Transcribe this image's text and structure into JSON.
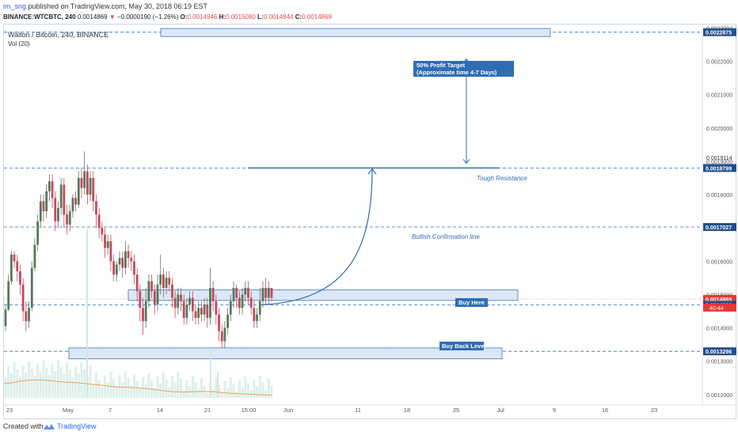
{
  "header": {
    "username": "im_sng",
    "published_text": "published on TradingView.com, May 30, 2018 06:19 EST",
    "symbol_line": "BINANCE:WTCBTC, 240",
    "last_price": "0.0014869",
    "change_arrow": "▼",
    "change": "−0.0000190 (−1.26%)",
    "o_label": "O:",
    "o_value": "0.0014946",
    "h_label": "H:",
    "h_value": "0.0015080",
    "l_label": "L:",
    "l_value": "0.0014844",
    "c_label": "C:",
    "c_value": "0.0014869"
  },
  "chart_label": "Walton / Bitcoin, 240, BINANCE",
  "volume_label": "Vol (20)",
  "footer": {
    "created_with": "Created with",
    "brand": "TradingView"
  },
  "colors": {
    "up": "#26a69a",
    "down": "#ef5350",
    "candle_up": "#55795c",
    "candle_down": "#c44a5a",
    "line": "#2f6db3",
    "dash": "#2f6db3",
    "box_fill": "#dbe7f7",
    "price_tag": "#244f8c",
    "current_tag": "#e53935"
  },
  "chart_data": {
    "type": "candlestick",
    "ylim": [
      0.00119,
      0.00232
    ],
    "x_ticks": [
      "23",
      "May",
      "7",
      "14",
      "21",
      "15:00",
      "Jun",
      "11",
      "18",
      "25",
      "Jul",
      "9",
      "16",
      "23"
    ],
    "y_ticks": [
      "0.0012000",
      "0.0013000",
      "0.0014000",
      "0.0015000",
      "0.0016000",
      "0.0017000",
      "0.0018000",
      "0.0019000",
      "0.0020000",
      "0.0021000",
      "0.0022000",
      "0.0023000"
    ],
    "price_tags": [
      "0.0022875",
      "0.0019114",
      "0.0018799",
      "0.0017027",
      "0.0014869",
      "0.0014692",
      "0.0013296"
    ],
    "countdown": "40:44",
    "levels": [
      0.0022875,
      0.0018799,
      0.0017027,
      0.0014692,
      0.0013296
    ],
    "current_price": 0.0014869,
    "annotations": {
      "target": "50% Profit Target\n(Approximate time 4-7 Days)",
      "resistance": "Tough Resistance",
      "confirmation": "Bullish Confirmation line",
      "buy": "Buy Here",
      "buyback": "Buy Back Level"
    },
    "candles": [
      [
        0.001405,
        0.001455,
        0.00139,
        0.00147
      ],
      [
        0.001455,
        0.00154,
        0.00145,
        0.00156
      ],
      [
        0.00154,
        0.00162,
        0.00153,
        0.00163
      ],
      [
        0.00162,
        0.0016,
        0.00158,
        0.00163
      ],
      [
        0.0016,
        0.00157,
        0.00154,
        0.00162
      ],
      [
        0.00157,
        0.00153,
        0.0015,
        0.00159
      ],
      [
        0.00153,
        0.00145,
        0.00142,
        0.00155
      ],
      [
        0.00145,
        0.00142,
        0.00139,
        0.00148
      ],
      [
        0.00142,
        0.00146,
        0.0014,
        0.00148
      ],
      [
        0.00146,
        0.00158,
        0.00145,
        0.0016
      ],
      [
        0.00158,
        0.00165,
        0.00157,
        0.00167
      ],
      [
        0.00165,
        0.00172,
        0.00163,
        0.00174
      ],
      [
        0.00172,
        0.00178,
        0.0017,
        0.0018
      ],
      [
        0.00178,
        0.00175,
        0.00172,
        0.0018
      ],
      [
        0.00175,
        0.00181,
        0.00173,
        0.00183
      ],
      [
        0.00181,
        0.00184,
        0.00178,
        0.00186
      ],
      [
        0.00184,
        0.00179,
        0.00176,
        0.00186
      ],
      [
        0.00179,
        0.00172,
        0.00169,
        0.00181
      ],
      [
        0.00172,
        0.00176,
        0.0017,
        0.00178
      ],
      [
        0.00176,
        0.00183,
        0.00174,
        0.00185
      ],
      [
        0.00183,
        0.00174,
        0.0017,
        0.00185
      ],
      [
        0.00174,
        0.00171,
        0.00168,
        0.00177
      ],
      [
        0.00171,
        0.00175,
        0.00169,
        0.00177
      ],
      [
        0.00175,
        0.00179,
        0.00173,
        0.0018
      ],
      [
        0.00179,
        0.00177,
        0.00175,
        0.00181
      ],
      [
        0.00177,
        0.00185,
        0.00176,
        0.00187
      ],
      [
        0.00185,
        0.00182,
        0.00179,
        0.00188
      ],
      [
        0.00182,
        0.00187,
        0.0018,
        0.00193
      ],
      [
        0.00187,
        0.0018,
        0.00177,
        0.00189
      ],
      [
        0.0018,
        0.00185,
        0.00178,
        0.00187
      ],
      [
        0.00185,
        0.00178,
        0.00175,
        0.00187
      ],
      [
        0.00178,
        0.00174,
        0.0017,
        0.0018
      ],
      [
        0.00174,
        0.0017,
        0.00167,
        0.00176
      ],
      [
        0.0017,
        0.00168,
        0.00166,
        0.00172
      ],
      [
        0.00168,
        0.00164,
        0.00161,
        0.0017
      ],
      [
        0.00164,
        0.00166,
        0.00162,
        0.00168
      ],
      [
        0.00166,
        0.0016,
        0.00157,
        0.00168
      ],
      [
        0.0016,
        0.00156,
        0.00154,
        0.00162
      ],
      [
        0.00156,
        0.00159,
        0.00154,
        0.0016
      ],
      [
        0.00159,
        0.00161,
        0.00157,
        0.00163
      ],
      [
        0.00161,
        0.00158,
        0.00155,
        0.00163
      ],
      [
        0.00158,
        0.00163,
        0.00156,
        0.00166
      ],
      [
        0.00163,
        0.00161,
        0.00158,
        0.00165
      ],
      [
        0.00161,
        0.0016,
        0.00157,
        0.00163
      ],
      [
        0.0016,
        0.00156,
        0.00153,
        0.00162
      ],
      [
        0.00156,
        0.00151,
        0.00148,
        0.00158
      ],
      [
        0.00151,
        0.00146,
        0.00142,
        0.00153
      ],
      [
        0.00146,
        0.00142,
        0.00138,
        0.00149
      ],
      [
        0.00142,
        0.00148,
        0.0014,
        0.00152
      ],
      [
        0.00148,
        0.00154,
        0.00146,
        0.00156
      ],
      [
        0.00154,
        0.00151,
        0.00149,
        0.00156
      ],
      [
        0.00151,
        0.00147,
        0.00144,
        0.00153
      ],
      [
        0.00147,
        0.00153,
        0.00145,
        0.00156
      ],
      [
        0.00153,
        0.00156,
        0.0015,
        0.00162
      ],
      [
        0.00156,
        0.00152,
        0.00149,
        0.00158
      ],
      [
        0.00152,
        0.00155,
        0.0015,
        0.00157
      ],
      [
        0.00155,
        0.00153,
        0.00151,
        0.00157
      ],
      [
        0.00153,
        0.00149,
        0.00146,
        0.00155
      ],
      [
        0.00149,
        0.00146,
        0.00143,
        0.00151
      ],
      [
        0.00146,
        0.0015,
        0.00144,
        0.00152
      ],
      [
        0.0015,
        0.00148,
        0.00145,
        0.00152
      ],
      [
        0.00148,
        0.00143,
        0.00141,
        0.0015
      ],
      [
        0.00143,
        0.00147,
        0.00141,
        0.00149
      ],
      [
        0.00147,
        0.00149,
        0.00145,
        0.00151
      ],
      [
        0.00149,
        0.00145,
        0.00142,
        0.00151
      ],
      [
        0.00145,
        0.00143,
        0.00141,
        0.00147
      ],
      [
        0.00143,
        0.00146,
        0.00141,
        0.00148
      ],
      [
        0.00146,
        0.00144,
        0.00142,
        0.00148
      ],
      [
        0.00144,
        0.00147,
        0.00142,
        0.00149
      ],
      [
        0.00147,
        0.00143,
        0.0014,
        0.00149
      ],
      [
        0.00143,
        0.00152,
        0.00141,
        0.00158
      ],
      [
        0.00152,
        0.00148,
        0.00145,
        0.00154
      ],
      [
        0.00148,
        0.00144,
        0.00141,
        0.0015
      ],
      [
        0.00144,
        0.00139,
        0.00136,
        0.00146
      ],
      [
        0.00139,
        0.00136,
        0.00134,
        0.00141
      ],
      [
        0.00136,
        0.0014,
        0.00134,
        0.00142
      ],
      [
        0.0014,
        0.00144,
        0.00138,
        0.00146
      ],
      [
        0.00144,
        0.00148,
        0.00142,
        0.0015
      ],
      [
        0.00148,
        0.00152,
        0.00146,
        0.00154
      ],
      [
        0.00152,
        0.00149,
        0.00146,
        0.00153
      ],
      [
        0.00149,
        0.00146,
        0.00144,
        0.00151
      ],
      [
        0.00146,
        0.0015,
        0.00144,
        0.00152
      ],
      [
        0.0015,
        0.00152,
        0.00148,
        0.00154
      ],
      [
        0.00152,
        0.00149,
        0.00147,
        0.00154
      ],
      [
        0.00149,
        0.00146,
        0.00144,
        0.00151
      ],
      [
        0.00146,
        0.00142,
        0.0014,
        0.00148
      ],
      [
        0.00142,
        0.00144,
        0.0014,
        0.00146
      ],
      [
        0.00144,
        0.00148,
        0.00142,
        0.00152
      ],
      [
        0.00148,
        0.00152,
        0.00146,
        0.00154
      ],
      [
        0.00152,
        0.00149,
        0.00147,
        0.00155
      ],
      [
        0.00149,
        0.00152,
        0.00147,
        0.00154
      ],
      [
        0.00152,
        0.00149,
        0.00148,
        0.00151
      ]
    ],
    "volume_sma": [
      0.6,
      0.62,
      0.65,
      0.7,
      0.72,
      0.74,
      0.75,
      0.76,
      0.74,
      0.72,
      0.7,
      0.68,
      0.66,
      0.65,
      0.64,
      0.62,
      0.6,
      0.57,
      0.55,
      0.53,
      0.5,
      0.48,
      0.46,
      0.45,
      0.44,
      0.43,
      0.42,
      0.4,
      0.38,
      0.36,
      0.33,
      0.3,
      0.28,
      0.26,
      0.25,
      0.24,
      0.25,
      0.26,
      0.27,
      0.27,
      0.26,
      0.25,
      0.23,
      0.21,
      0.19,
      0.18,
      0.17,
      0.16,
      0.15,
      0.14,
      0.13,
      0.12,
      0.11
    ]
  }
}
